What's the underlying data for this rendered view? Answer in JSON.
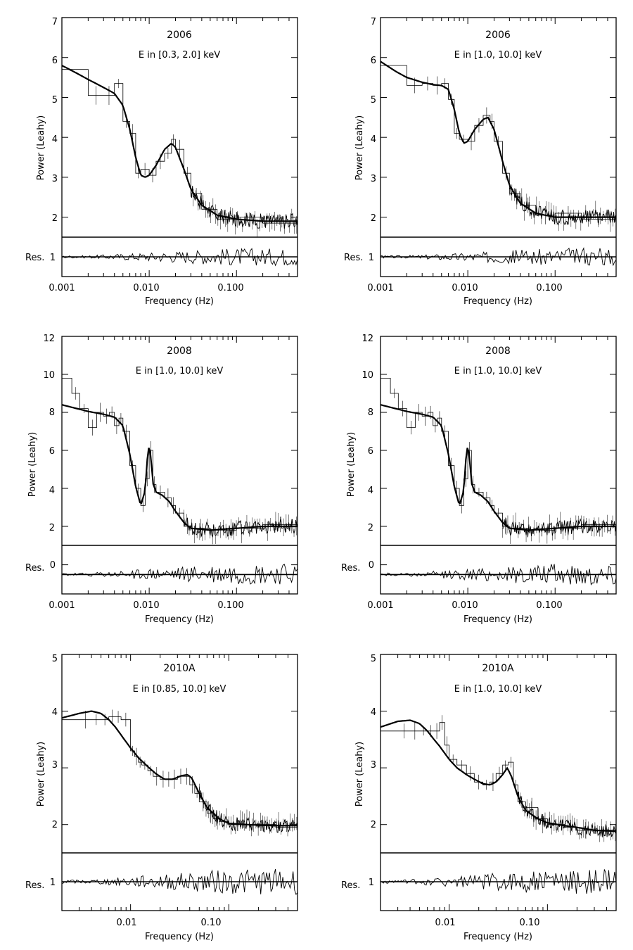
{
  "figure": {
    "panels": [
      {
        "id": "p2006a",
        "title": "2006",
        "energy": "E in [0.3, 2.0] keV",
        "ylabel": "Power (Leahy)",
        "res_label": "Res.",
        "res_tick": "1",
        "xlabel": "Frequency (Hz)",
        "xticks": [
          "0.001",
          "0.010",
          "0.100"
        ],
        "yticks": [
          "2",
          "3",
          "4",
          "5",
          "6",
          "7"
        ]
      },
      {
        "id": "p2006b",
        "title": "2006",
        "energy": "E in [1.0, 10.0] keV",
        "ylabel": "Power (Leahy)",
        "res_label": "Res.",
        "res_tick": "1",
        "xlabel": "Frequency (Hz)",
        "xticks": [
          "0.001",
          "0.010",
          "0.100"
        ],
        "yticks": [
          "2",
          "3",
          "4",
          "5",
          "6",
          "7"
        ]
      },
      {
        "id": "p2008a",
        "title": "2008",
        "energy": "E in [1.0, 10.0] keV",
        "ylabel": "Power (Leahy)",
        "res_label": "Res.",
        "res_tick": "0",
        "xlabel": "Frequency (Hz)",
        "xticks": [
          "0.001",
          "0.010",
          "0.100"
        ],
        "yticks": [
          "2",
          "4",
          "6",
          "8",
          "10",
          "12"
        ]
      },
      {
        "id": "p2008b",
        "title": "2008",
        "energy": "E in [1.0, 10.0] keV",
        "ylabel": "Power (Leahy)",
        "res_label": "Res.",
        "res_tick": "0",
        "xlabel": "Frequency (Hz)",
        "xticks": [
          "0.001",
          "0.010",
          "0.100"
        ],
        "yticks": [
          "2",
          "4",
          "6",
          "8",
          "10",
          "12"
        ]
      },
      {
        "id": "p2010a",
        "title": "2010A",
        "energy": "E in [0.85, 10.0] keV",
        "ylabel": "Power (Leahy)",
        "res_label": "Res.",
        "res_tick": "1",
        "xlabel": "Frequency (Hz)",
        "xticks": [
          "0.01",
          "0.10"
        ],
        "yticks": [
          "2",
          "3",
          "4",
          "5"
        ]
      },
      {
        "id": "p2010b",
        "title": "2010A",
        "energy": "E in [1.0, 10.0] keV",
        "ylabel": "Power (Leahy)",
        "res_label": "Res.",
        "res_tick": "1",
        "xlabel": "Frequency (Hz)",
        "xticks": [
          "0.01",
          "0.10"
        ],
        "yticks": [
          "2",
          "3",
          "4",
          "5"
        ]
      }
    ]
  },
  "chart_data": [
    {
      "type": "line",
      "title": "2006",
      "subtitle": "E in [0.3, 2.0] keV",
      "xlabel": "Frequency (Hz)",
      "ylabel": "Power (Leahy)",
      "xscale": "log",
      "xlim": [
        0.001,
        0.5
      ],
      "ylim": [
        1.5,
        7
      ],
      "xticks": [
        0.001,
        0.01,
        0.1
      ],
      "yticks": [
        2,
        3,
        4,
        5,
        6,
        7
      ],
      "residual_panel": {
        "label": "Res.",
        "ylim": [
          0.5,
          1.5
        ],
        "ticks": [
          1
        ],
        "reference": 1
      },
      "model_points": {
        "x": [
          0.001,
          0.0015,
          0.002,
          0.003,
          0.004,
          0.005,
          0.006,
          0.007,
          0.008,
          0.009,
          0.01,
          0.012,
          0.015,
          0.018,
          0.02,
          0.025,
          0.03,
          0.04,
          0.06,
          0.1,
          0.2,
          0.5
        ],
        "y": [
          5.8,
          5.6,
          5.45,
          5.25,
          5.1,
          4.8,
          4.2,
          3.5,
          3.05,
          3.0,
          3.05,
          3.3,
          3.7,
          3.85,
          3.75,
          3.2,
          2.7,
          2.3,
          2.05,
          1.95,
          1.9,
          1.9
        ]
      },
      "data_steps": {
        "x": [
          0.001,
          0.002,
          0.003,
          0.004,
          0.005,
          0.006,
          0.007,
          0.008,
          0.01,
          0.012,
          0.015,
          0.018,
          0.02,
          0.025,
          0.03,
          0.04,
          0.06,
          0.1,
          0.2,
          0.5
        ],
        "y": [
          5.7,
          5.05,
          5.05,
          5.35,
          4.4,
          4.1,
          3.1,
          3.2,
          3.05,
          3.4,
          3.6,
          3.95,
          3.7,
          3.1,
          2.6,
          2.2,
          1.95,
          2.0,
          1.85,
          1.95
        ]
      },
      "noise_from": 0.03,
      "noise_level": 1.95
    },
    {
      "type": "line",
      "title": "2006",
      "subtitle": "E in [1.0, 10.0] keV",
      "xlabel": "Frequency (Hz)",
      "ylabel": "Power (Leahy)",
      "xscale": "log",
      "xlim": [
        0.001,
        0.5
      ],
      "ylim": [
        1.5,
        7
      ],
      "xticks": [
        0.001,
        0.01,
        0.1
      ],
      "yticks": [
        2,
        3,
        4,
        5,
        6,
        7
      ],
      "residual_panel": {
        "label": "Res.",
        "ylim": [
          0.5,
          1.5
        ],
        "ticks": [
          1
        ],
        "reference": 1
      },
      "model_points": {
        "x": [
          0.001,
          0.0015,
          0.002,
          0.003,
          0.004,
          0.005,
          0.006,
          0.007,
          0.008,
          0.009,
          0.01,
          0.012,
          0.015,
          0.017,
          0.02,
          0.025,
          0.03,
          0.04,
          0.06,
          0.1,
          0.2,
          0.5
        ],
        "y": [
          5.9,
          5.65,
          5.5,
          5.38,
          5.32,
          5.3,
          5.2,
          4.7,
          4.1,
          3.85,
          3.9,
          4.2,
          4.45,
          4.5,
          4.2,
          3.4,
          2.8,
          2.35,
          2.1,
          2.0,
          2.0,
          2.0
        ]
      },
      "data_steps": {
        "x": [
          0.001,
          0.002,
          0.003,
          0.004,
          0.005,
          0.006,
          0.007,
          0.008,
          0.01,
          0.012,
          0.015,
          0.018,
          0.02,
          0.025,
          0.03,
          0.04,
          0.06,
          0.1,
          0.2,
          0.5
        ],
        "y": [
          5.8,
          5.3,
          5.35,
          5.3,
          5.35,
          4.95,
          4.1,
          3.95,
          3.9,
          4.3,
          4.55,
          4.4,
          3.9,
          3.1,
          2.6,
          2.3,
          2.05,
          2.1,
          1.95,
          2.0
        ]
      },
      "noise_from": 0.03,
      "noise_level": 2.0
    },
    {
      "type": "line",
      "title": "2008",
      "subtitle": "E in [1.0, 10.0] keV",
      "xlabel": "Frequency (Hz)",
      "ylabel": "Power (Leahy)",
      "xscale": "log",
      "xlim": [
        0.001,
        0.5
      ],
      "ylim": [
        1,
        12
      ],
      "xticks": [
        0.001,
        0.01,
        0.1
      ],
      "yticks": [
        2,
        4,
        6,
        8,
        10,
        12
      ],
      "residual_panel": {
        "label": "Res.",
        "ylim": [
          -1.5,
          1
        ],
        "ticks": [
          0
        ],
        "reference": -0.5
      },
      "model_points": {
        "x": [
          0.001,
          0.002,
          0.003,
          0.004,
          0.005,
          0.006,
          0.007,
          0.008,
          0.009,
          0.0095,
          0.01,
          0.0105,
          0.011,
          0.012,
          0.014,
          0.017,
          0.02,
          0.025,
          0.03,
          0.05,
          0.1,
          0.2,
          0.5
        ],
        "y": [
          8.4,
          8.05,
          7.9,
          7.75,
          7.3,
          5.8,
          4.1,
          3.1,
          3.9,
          5.5,
          6.3,
          5.6,
          4.3,
          3.8,
          3.65,
          3.3,
          2.8,
          2.2,
          1.9,
          1.8,
          1.9,
          2.0,
          2.0
        ]
      },
      "data_steps": {
        "x": [
          0.001,
          0.0013,
          0.0016,
          0.002,
          0.0025,
          0.003,
          0.0035,
          0.004,
          0.0045,
          0.005,
          0.006,
          0.007,
          0.008,
          0.009,
          0.01,
          0.011,
          0.012,
          0.015,
          0.018,
          0.02,
          0.025,
          0.03,
          0.05,
          0.1,
          0.2,
          0.5
        ],
        "y": [
          9.8,
          9.0,
          8.2,
          7.2,
          8.0,
          7.8,
          8.0,
          7.3,
          7.7,
          7.0,
          5.2,
          4.0,
          3.1,
          4.5,
          6.0,
          4.2,
          3.8,
          3.5,
          3.1,
          2.7,
          2.0,
          1.9,
          1.8,
          1.9,
          2.1,
          2.0
        ]
      },
      "noise_from": 0.025,
      "noise_level": 2.0
    },
    {
      "type": "line",
      "title": "2008",
      "subtitle": "E in [1.0, 10.0] keV",
      "xlabel": "Frequency (Hz)",
      "ylabel": "Power (Leahy)",
      "xscale": "log",
      "xlim": [
        0.001,
        0.5
      ],
      "ylim": [
        1,
        12
      ],
      "xticks": [
        0.001,
        0.01,
        0.1
      ],
      "yticks": [
        2,
        4,
        6,
        8,
        10,
        12
      ],
      "residual_panel": {
        "label": "Res.",
        "ylim": [
          -1.5,
          1
        ],
        "ticks": [
          0
        ],
        "reference": -0.5
      },
      "model_points": {
        "x": [
          0.001,
          0.002,
          0.003,
          0.004,
          0.005,
          0.006,
          0.007,
          0.008,
          0.009,
          0.0095,
          0.01,
          0.0105,
          0.011,
          0.012,
          0.014,
          0.017,
          0.02,
          0.025,
          0.03,
          0.05,
          0.1,
          0.2,
          0.5
        ],
        "y": [
          8.4,
          8.05,
          7.9,
          7.75,
          7.3,
          5.8,
          4.1,
          3.1,
          3.9,
          5.5,
          6.3,
          5.6,
          4.3,
          3.8,
          3.65,
          3.3,
          2.8,
          2.2,
          1.9,
          1.8,
          1.9,
          2.0,
          2.0
        ]
      },
      "data_steps": {
        "x": [
          0.001,
          0.0013,
          0.0016,
          0.002,
          0.0025,
          0.003,
          0.0035,
          0.004,
          0.0045,
          0.005,
          0.006,
          0.007,
          0.008,
          0.009,
          0.01,
          0.011,
          0.012,
          0.015,
          0.018,
          0.02,
          0.025,
          0.03,
          0.05,
          0.1,
          0.2,
          0.5
        ],
        "y": [
          9.8,
          9.0,
          8.2,
          7.2,
          8.0,
          7.8,
          8.0,
          7.3,
          7.7,
          7.0,
          5.2,
          4.0,
          3.1,
          4.5,
          6.0,
          4.2,
          3.8,
          3.5,
          3.1,
          2.7,
          2.0,
          1.9,
          1.8,
          1.9,
          2.1,
          2.0
        ]
      },
      "noise_from": 0.025,
      "noise_level": 2.0
    },
    {
      "type": "line",
      "title": "2010A",
      "subtitle": "E in [0.85, 10.0] keV",
      "xlabel": "Frequency (Hz)",
      "ylabel": "Power (Leahy)",
      "xscale": "log",
      "xlim": [
        0.002,
        0.5
      ],
      "ylim": [
        1.5,
        5
      ],
      "xticks": [
        0.01,
        0.1
      ],
      "yticks": [
        2,
        3,
        4,
        5
      ],
      "residual_panel": {
        "label": "Res.",
        "ylim": [
          0.5,
          1.5
        ],
        "ticks": [
          1
        ],
        "reference": 1
      },
      "model_points": {
        "x": [
          0.002,
          0.003,
          0.004,
          0.005,
          0.006,
          0.007,
          0.008,
          0.01,
          0.012,
          0.015,
          0.018,
          0.022,
          0.027,
          0.033,
          0.038,
          0.042,
          0.05,
          0.06,
          0.08,
          0.1,
          0.15,
          0.2,
          0.3,
          0.5
        ],
        "y": [
          3.88,
          3.96,
          4.0,
          3.96,
          3.85,
          3.72,
          3.58,
          3.35,
          3.18,
          3.02,
          2.9,
          2.8,
          2.8,
          2.86,
          2.88,
          2.82,
          2.55,
          2.3,
          2.1,
          2.02,
          2.0,
          1.99,
          1.98,
          1.98
        ]
      },
      "data_steps": {
        "x": [
          0.002,
          0.003,
          0.004,
          0.005,
          0.006,
          0.007,
          0.008,
          0.01,
          0.011,
          0.012,
          0.013,
          0.015,
          0.017,
          0.02,
          0.023,
          0.026,
          0.03,
          0.035,
          0.04,
          0.045,
          0.05,
          0.06,
          0.07,
          0.08,
          0.1,
          0.15,
          0.2,
          0.3,
          0.5
        ],
        "y": [
          3.85,
          3.85,
          3.85,
          3.85,
          3.9,
          3.9,
          3.85,
          3.3,
          3.2,
          3.1,
          3.05,
          2.95,
          2.85,
          2.8,
          2.8,
          2.8,
          2.85,
          2.85,
          2.7,
          2.55,
          2.4,
          2.2,
          2.1,
          2.05,
          2.0,
          2.0,
          2.0,
          1.95,
          2.0
        ]
      },
      "noise_from": 0.05,
      "noise_level": 1.98
    },
    {
      "type": "line",
      "title": "2010A",
      "subtitle": "E in [1.0, 10.0] keV",
      "xlabel": "Frequency (Hz)",
      "ylabel": "Power (Leahy)",
      "xscale": "log",
      "xlim": [
        0.002,
        0.5
      ],
      "ylim": [
        1.5,
        5
      ],
      "xticks": [
        0.01,
        0.1
      ],
      "yticks": [
        2,
        3,
        4,
        5
      ],
      "residual_panel": {
        "label": "Res.",
        "ylim": [
          0.5,
          1.5
        ],
        "ticks": [
          1
        ],
        "reference": 1
      },
      "model_points": {
        "x": [
          0.002,
          0.003,
          0.004,
          0.005,
          0.006,
          0.007,
          0.008,
          0.01,
          0.012,
          0.015,
          0.018,
          0.022,
          0.026,
          0.03,
          0.035,
          0.039,
          0.043,
          0.05,
          0.06,
          0.08,
          0.1,
          0.15,
          0.2,
          0.3,
          0.5
        ],
        "y": [
          3.72,
          3.82,
          3.84,
          3.78,
          3.65,
          3.5,
          3.38,
          3.15,
          3.0,
          2.88,
          2.8,
          2.72,
          2.7,
          2.75,
          2.88,
          3.0,
          2.85,
          2.5,
          2.25,
          2.1,
          2.03,
          1.98,
          1.95,
          1.9,
          1.88
        ]
      },
      "data_steps": {
        "x": [
          0.002,
          0.003,
          0.004,
          0.005,
          0.006,
          0.007,
          0.008,
          0.009,
          0.01,
          0.012,
          0.015,
          0.018,
          0.022,
          0.026,
          0.03,
          0.035,
          0.04,
          0.045,
          0.05,
          0.06,
          0.08,
          0.1,
          0.15,
          0.2,
          0.3,
          0.5
        ],
        "y": [
          3.65,
          3.65,
          3.65,
          3.65,
          3.65,
          3.65,
          3.8,
          3.4,
          3.15,
          3.05,
          2.9,
          2.75,
          2.7,
          2.75,
          2.9,
          3.05,
          3.1,
          2.7,
          2.4,
          2.3,
          2.1,
          2.0,
          1.95,
          1.9,
          1.9,
          1.85
        ]
      },
      "noise_from": 0.05,
      "noise_level": 1.9
    }
  ]
}
